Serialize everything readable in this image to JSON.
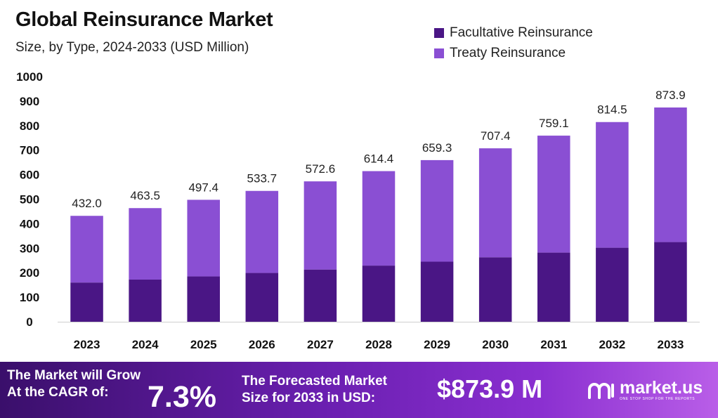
{
  "colors": {
    "facultative": "#4a1685",
    "treaty": "#8a4fd3",
    "footer_accent": "#7a24c4"
  },
  "header": {
    "title": "Global Reinsurance Market",
    "subtitle": "Size, by Type, 2024-2033 (USD Million)"
  },
  "legend": [
    {
      "label": "Facultative Reinsurance",
      "color": "#4a1685"
    },
    {
      "label": "Treaty Reinsurance",
      "color": "#8a4fd3"
    }
  ],
  "chart_data": {
    "type": "bar",
    "stacked": true,
    "title": "Global Reinsurance Market",
    "subtitle": "Size, by Type, 2024-2033 (USD Million)",
    "categories": [
      "2023",
      "2024",
      "2025",
      "2026",
      "2027",
      "2028",
      "2029",
      "2030",
      "2031",
      "2032",
      "2033"
    ],
    "series": [
      {
        "name": "Facultative Reinsurance",
        "color": "#4a1685",
        "values": [
          160,
          172,
          185,
          199,
          213,
          229,
          245,
          263,
          282,
          302,
          325
        ]
      },
      {
        "name": "Treaty Reinsurance",
        "color": "#8a4fd3",
        "values": [
          272,
          291.5,
          312.4,
          334.7,
          359.6,
          385.4,
          414.3,
          444.4,
          477.1,
          512.5,
          548.9
        ]
      }
    ],
    "totals": [
      "432.0",
      "463.5",
      "497.4",
      "533.7",
      "572.6",
      "614.4",
      "659.3",
      "707.4",
      "759.1",
      "814.5",
      "873.9"
    ],
    "yticks": [
      "0",
      "100",
      "200",
      "300",
      "400",
      "500",
      "600",
      "700",
      "800",
      "900",
      "1000"
    ],
    "ylim": [
      0,
      1000
    ],
    "grid": false,
    "legend_position": "top-right"
  },
  "footer": {
    "cagr_line1": "The Market will Grow",
    "cagr_line2": "At the CAGR of:",
    "cagr_value": "7.3%",
    "forecast_line1": "The Forecasted Market",
    "forecast_line2": "Size for 2033 in USD:",
    "forecast_value": "$873.9 M",
    "brand_name": "market.us",
    "brand_tagline": "ONE STOP SHOP FOR THE REPORTS"
  }
}
